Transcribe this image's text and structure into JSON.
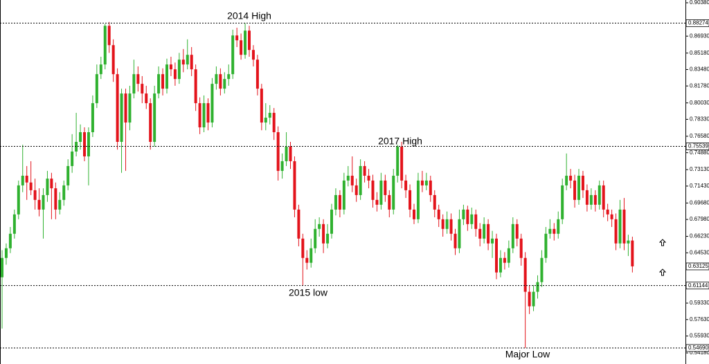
{
  "chart_data": {
    "type": "candlestick",
    "up_color": "#2fb12f",
    "down_color": "#e3131b",
    "ylim": [
      0.5418,
      0.9038
    ],
    "yticks": [
      {
        "value": 0.9038,
        "label": "0.90380"
      },
      {
        "value": 0.8693,
        "label": "0.86930"
      },
      {
        "value": 0.8518,
        "label": "0.85180"
      },
      {
        "value": 0.8348,
        "label": "0.83480"
      },
      {
        "value": 0.8178,
        "label": "0.81780"
      },
      {
        "value": 0.8003,
        "label": "0.80030"
      },
      {
        "value": 0.7833,
        "label": "0.78330"
      },
      {
        "value": 0.7658,
        "label": "0.76580"
      },
      {
        "value": 0.7488,
        "label": "0.74880"
      },
      {
        "value": 0.7313,
        "label": "0.73130"
      },
      {
        "value": 0.7143,
        "label": "0.71430"
      },
      {
        "value": 0.6968,
        "label": "0.69680"
      },
      {
        "value": 0.6798,
        "label": "0.67980"
      },
      {
        "value": 0.6623,
        "label": "0.66230"
      },
      {
        "value": 0.6453,
        "label": "0.64530"
      },
      {
        "value": 0.5933,
        "label": "0.59330"
      },
      {
        "value": 0.5763,
        "label": "0.57630"
      },
      {
        "value": 0.5593,
        "label": "0.55930"
      },
      {
        "value": 0.5418,
        "label": "0.54180"
      }
    ],
    "levels": [
      {
        "value": 0.88274,
        "label": "0.88274"
      },
      {
        "value": 0.75539,
        "label": "0.75539"
      },
      {
        "value": 0.61144,
        "label": "0.61144"
      },
      {
        "value": 0.5469,
        "label": "0.54690"
      }
    ],
    "last_price": {
      "value": 0.63125,
      "label": "0.63125"
    },
    "annotations": [
      "2014 High",
      "2017 High",
      "2015 low",
      "Major Low"
    ],
    "ohlc": [
      [
        0.62,
        0.648,
        0.567,
        0.64
      ],
      [
        0.64,
        0.655,
        0.633,
        0.65
      ],
      [
        0.65,
        0.672,
        0.645,
        0.665
      ],
      [
        0.665,
        0.69,
        0.66,
        0.685
      ],
      [
        0.685,
        0.72,
        0.68,
        0.715
      ],
      [
        0.715,
        0.757,
        0.708,
        0.725
      ],
      [
        0.725,
        0.735,
        0.7,
        0.718
      ],
      [
        0.718,
        0.74,
        0.705,
        0.71
      ],
      [
        0.71,
        0.722,
        0.69,
        0.7
      ],
      [
        0.7,
        0.712,
        0.683,
        0.69
      ],
      [
        0.69,
        0.712,
        0.66,
        0.705
      ],
      [
        0.705,
        0.73,
        0.698,
        0.722
      ],
      [
        0.722,
        0.728,
        0.68,
        0.712
      ],
      [
        0.712,
        0.718,
        0.68,
        0.69
      ],
      [
        0.69,
        0.708,
        0.685,
        0.7
      ],
      [
        0.7,
        0.72,
        0.694,
        0.715
      ],
      [
        0.715,
        0.742,
        0.71,
        0.735
      ],
      [
        0.735,
        0.768,
        0.728,
        0.75
      ],
      [
        0.75,
        0.79,
        0.745,
        0.76
      ],
      [
        0.76,
        0.778,
        0.752,
        0.77
      ],
      [
        0.77,
        0.775,
        0.74,
        0.745
      ],
      [
        0.745,
        0.775,
        0.715,
        0.77
      ],
      [
        0.77,
        0.808,
        0.765,
        0.8
      ],
      [
        0.8,
        0.84,
        0.795,
        0.83
      ],
      [
        0.83,
        0.848,
        0.825,
        0.84
      ],
      [
        0.84,
        0.882,
        0.835,
        0.88
      ],
      [
        0.88,
        0.884,
        0.852,
        0.86
      ],
      [
        0.86,
        0.866,
        0.822,
        0.83
      ],
      [
        0.83,
        0.836,
        0.752,
        0.76
      ],
      [
        0.76,
        0.815,
        0.728,
        0.81
      ],
      [
        0.81,
        0.815,
        0.73,
        0.78
      ],
      [
        0.78,
        0.818,
        0.772,
        0.81
      ],
      [
        0.81,
        0.845,
        0.805,
        0.83
      ],
      [
        0.83,
        0.838,
        0.812,
        0.82
      ],
      [
        0.82,
        0.828,
        0.8,
        0.81
      ],
      [
        0.81,
        0.818,
        0.794,
        0.8
      ],
      [
        0.8,
        0.805,
        0.752,
        0.76
      ],
      [
        0.76,
        0.818,
        0.755,
        0.81
      ],
      [
        0.81,
        0.838,
        0.805,
        0.83
      ],
      [
        0.83,
        0.836,
        0.808,
        0.815
      ],
      [
        0.815,
        0.846,
        0.81,
        0.84
      ],
      [
        0.84,
        0.848,
        0.828,
        0.835
      ],
      [
        0.835,
        0.842,
        0.818,
        0.825
      ],
      [
        0.825,
        0.852,
        0.82,
        0.845
      ],
      [
        0.845,
        0.856,
        0.832,
        0.84
      ],
      [
        0.84,
        0.866,
        0.835,
        0.85
      ],
      [
        0.85,
        0.858,
        0.828,
        0.835
      ],
      [
        0.835,
        0.84,
        0.792,
        0.8
      ],
      [
        0.8,
        0.806,
        0.768,
        0.775
      ],
      [
        0.775,
        0.808,
        0.77,
        0.8
      ],
      [
        0.8,
        0.805,
        0.772,
        0.78
      ],
      [
        0.78,
        0.826,
        0.775,
        0.82
      ],
      [
        0.82,
        0.838,
        0.814,
        0.83
      ],
      [
        0.83,
        0.836,
        0.808,
        0.815
      ],
      [
        0.815,
        0.832,
        0.81,
        0.825
      ],
      [
        0.825,
        0.84,
        0.818,
        0.83
      ],
      [
        0.83,
        0.876,
        0.825,
        0.87
      ],
      [
        0.87,
        0.878,
        0.858,
        0.865
      ],
      [
        0.865,
        0.872,
        0.845,
        0.85
      ],
      [
        0.85,
        0.8827,
        0.846,
        0.875
      ],
      [
        0.875,
        0.88,
        0.848,
        0.855
      ],
      [
        0.855,
        0.86,
        0.838,
        0.845
      ],
      [
        0.845,
        0.85,
        0.808,
        0.815
      ],
      [
        0.815,
        0.82,
        0.772,
        0.78
      ],
      [
        0.78,
        0.8,
        0.772,
        0.785
      ],
      [
        0.785,
        0.798,
        0.778,
        0.79
      ],
      [
        0.79,
        0.795,
        0.762,
        0.77
      ],
      [
        0.77,
        0.776,
        0.72,
        0.73
      ],
      [
        0.73,
        0.748,
        0.722,
        0.74
      ],
      [
        0.74,
        0.77,
        0.735,
        0.755
      ],
      [
        0.755,
        0.76,
        0.732,
        0.74
      ],
      [
        0.74,
        0.745,
        0.682,
        0.69
      ],
      [
        0.69,
        0.695,
        0.652,
        0.66
      ],
      [
        0.66,
        0.665,
        0.6114,
        0.64
      ],
      [
        0.64,
        0.648,
        0.628,
        0.635
      ],
      [
        0.635,
        0.66,
        0.63,
        0.65
      ],
      [
        0.65,
        0.68,
        0.645,
        0.67
      ],
      [
        0.67,
        0.682,
        0.662,
        0.675
      ],
      [
        0.675,
        0.68,
        0.645,
        0.655
      ],
      [
        0.655,
        0.675,
        0.65,
        0.665
      ],
      [
        0.665,
        0.696,
        0.66,
        0.69
      ],
      [
        0.69,
        0.712,
        0.684,
        0.705
      ],
      [
        0.705,
        0.71,
        0.682,
        0.69
      ],
      [
        0.69,
        0.728,
        0.685,
        0.72
      ],
      [
        0.72,
        0.735,
        0.714,
        0.725
      ],
      [
        0.725,
        0.745,
        0.708,
        0.715
      ],
      [
        0.715,
        0.722,
        0.698,
        0.705
      ],
      [
        0.705,
        0.742,
        0.7,
        0.735
      ],
      [
        0.735,
        0.74,
        0.718,
        0.725
      ],
      [
        0.725,
        0.732,
        0.712,
        0.72
      ],
      [
        0.72,
        0.726,
        0.692,
        0.7
      ],
      [
        0.7,
        0.708,
        0.688,
        0.695
      ],
      [
        0.695,
        0.728,
        0.69,
        0.72
      ],
      [
        0.72,
        0.726,
        0.698,
        0.705
      ],
      [
        0.705,
        0.71,
        0.682,
        0.69
      ],
      [
        0.69,
        0.732,
        0.685,
        0.725
      ],
      [
        0.725,
        0.757,
        0.718,
        0.755
      ],
      [
        0.755,
        0.76,
        0.712,
        0.72
      ],
      [
        0.72,
        0.726,
        0.702,
        0.71
      ],
      [
        0.71,
        0.716,
        0.682,
        0.69
      ],
      [
        0.69,
        0.696,
        0.675,
        0.68
      ],
      [
        0.68,
        0.728,
        0.676,
        0.72
      ],
      [
        0.72,
        0.73,
        0.708,
        0.715
      ],
      [
        0.715,
        0.728,
        0.71,
        0.72
      ],
      [
        0.72,
        0.725,
        0.698,
        0.705
      ],
      [
        0.705,
        0.71,
        0.682,
        0.69
      ],
      [
        0.69,
        0.695,
        0.672,
        0.68
      ],
      [
        0.68,
        0.685,
        0.662,
        0.67
      ],
      [
        0.67,
        0.688,
        0.665,
        0.68
      ],
      [
        0.68,
        0.686,
        0.658,
        0.665
      ],
      [
        0.665,
        0.67,
        0.643,
        0.65
      ],
      [
        0.65,
        0.69,
        0.645,
        0.68
      ],
      [
        0.68,
        0.695,
        0.674,
        0.69
      ],
      [
        0.69,
        0.694,
        0.668,
        0.675
      ],
      [
        0.675,
        0.692,
        0.67,
        0.685
      ],
      [
        0.685,
        0.69,
        0.662,
        0.67
      ],
      [
        0.67,
        0.676,
        0.652,
        0.66
      ],
      [
        0.66,
        0.682,
        0.655,
        0.675
      ],
      [
        0.675,
        0.68,
        0.648,
        0.655
      ],
      [
        0.655,
        0.668,
        0.64,
        0.66
      ],
      [
        0.66,
        0.665,
        0.618,
        0.625
      ],
      [
        0.625,
        0.648,
        0.62,
        0.64
      ],
      [
        0.64,
        0.646,
        0.628,
        0.635
      ],
      [
        0.635,
        0.658,
        0.63,
        0.65
      ],
      [
        0.65,
        0.682,
        0.645,
        0.675
      ],
      [
        0.675,
        0.68,
        0.652,
        0.66
      ],
      [
        0.66,
        0.665,
        0.632,
        0.64
      ],
      [
        0.64,
        0.646,
        0.5469,
        0.605
      ],
      [
        0.605,
        0.612,
        0.582,
        0.59
      ],
      [
        0.59,
        0.612,
        0.585,
        0.605
      ],
      [
        0.605,
        0.622,
        0.598,
        0.615
      ],
      [
        0.615,
        0.648,
        0.61,
        0.64
      ],
      [
        0.64,
        0.672,
        0.635,
        0.665
      ],
      [
        0.665,
        0.68,
        0.66,
        0.67
      ],
      [
        0.67,
        0.676,
        0.658,
        0.665
      ],
      [
        0.665,
        0.688,
        0.66,
        0.68
      ],
      [
        0.68,
        0.722,
        0.675,
        0.715
      ],
      [
        0.715,
        0.748,
        0.71,
        0.725
      ],
      [
        0.725,
        0.732,
        0.712,
        0.72
      ],
      [
        0.72,
        0.726,
        0.692,
        0.7
      ],
      [
        0.7,
        0.732,
        0.695,
        0.725
      ],
      [
        0.725,
        0.73,
        0.702,
        0.71
      ],
      [
        0.71,
        0.716,
        0.688,
        0.695
      ],
      [
        0.695,
        0.712,
        0.69,
        0.705
      ],
      [
        0.705,
        0.71,
        0.688,
        0.695
      ],
      [
        0.695,
        0.72,
        0.69,
        0.715
      ],
      [
        0.715,
        0.72,
        0.682,
        0.69
      ],
      [
        0.69,
        0.696,
        0.678,
        0.685
      ],
      [
        0.685,
        0.69,
        0.672,
        0.68
      ],
      [
        0.68,
        0.686,
        0.648,
        0.655
      ],
      [
        0.655,
        0.7,
        0.65,
        0.69
      ],
      [
        0.69,
        0.702,
        0.648,
        0.655
      ],
      [
        0.655,
        0.664,
        0.642,
        0.658
      ],
      [
        0.658,
        0.662,
        0.625,
        0.6313
      ]
    ]
  }
}
